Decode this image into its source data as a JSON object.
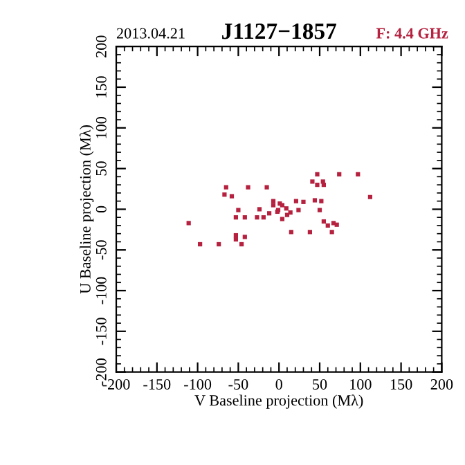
{
  "chart_data": {
    "type": "scatter",
    "title": "J1127−1857",
    "annotations": [
      "2013.04.21",
      "F: 4.4 GHz"
    ],
    "xlabel": "V Baseline projection (Mλ)",
    "ylabel": "U Baseline projection (Mλ)",
    "xlim": [
      -200,
      200
    ],
    "ylim": [
      -200,
      200
    ],
    "xticks": [
      -200,
      -150,
      -100,
      -50,
      0,
      50,
      100,
      150,
      200
    ],
    "yticks": [
      -200,
      -150,
      -100,
      -50,
      0,
      50,
      100,
      150,
      200
    ],
    "grid": false,
    "marker": "square",
    "series": [
      {
        "color": "#b5213f",
        "x": [
          47,
          74,
          97,
          41,
          54,
          55,
          47,
          -65,
          -38,
          -15,
          -67,
          -58,
          -7,
          1,
          21,
          30,
          44,
          52,
          112,
          -50,
          -24,
          24,
          50,
          -53,
          -42,
          -27,
          -19,
          -7,
          4,
          -2,
          10,
          4,
          55,
          67,
          71,
          60,
          -111,
          15,
          38,
          65,
          -53,
          -42,
          -53,
          -97,
          -74,
          -46,
          -1,
          9,
          -12,
          14
        ],
        "values": [
          43,
          43,
          43,
          34,
          34,
          30,
          30,
          27,
          27,
          27,
          18,
          16,
          10,
          7,
          10,
          9,
          11,
          10,
          15,
          -1,
          0,
          -1,
          -1,
          -10,
          -10,
          -10,
          -10,
          5,
          5,
          -3,
          -7,
          -12,
          -15,
          -17,
          -19,
          -20,
          -17,
          -28,
          -28,
          -28,
          -32,
          -34,
          -37,
          -43,
          -43,
          -43,
          -1,
          1,
          -5,
          -4
        ]
      }
    ]
  }
}
